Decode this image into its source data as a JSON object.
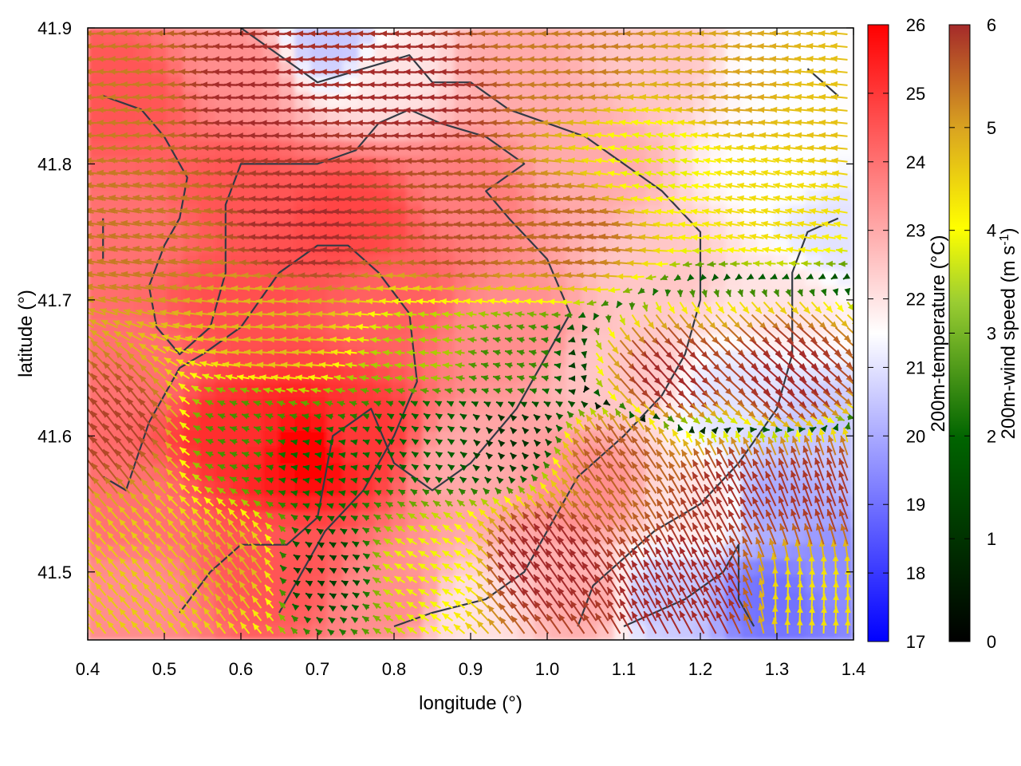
{
  "chart_data": {
    "type": "heatmap",
    "subtype": "temperature field with wind vector overlay and terrain contours",
    "xlabel": "longitude (°)",
    "ylabel": "latitude (°)",
    "xlim": [
      0.4,
      1.4
    ],
    "ylim": [
      41.45,
      41.9
    ],
    "x_ticks": [
      "0.4",
      "0.5",
      "0.6",
      "0.7",
      "0.8",
      "0.9",
      "1.0",
      "1.1",
      "1.2",
      "1.3",
      "1.4"
    ],
    "y_ticks": [
      "41.5",
      "41.6",
      "41.7",
      "41.8",
      "41.9"
    ],
    "grid": false,
    "temperature_colorbar": {
      "label": "200m-temperature (°C)",
      "range": [
        17,
        26
      ],
      "ticks": [
        "17",
        "18",
        "19",
        "20",
        "21",
        "22",
        "23",
        "24",
        "25",
        "26"
      ],
      "colors": [
        "#0000ff",
        "#ffffff",
        "#ff0000"
      ]
    },
    "wind_colorbar": {
      "label": "200m-wind speed (m s-1)",
      "range": [
        0,
        6
      ],
      "ticks": [
        "0",
        "1",
        "2",
        "3",
        "4",
        "5",
        "6"
      ],
      "colors": [
        "#000000",
        "#006400",
        "#ffff00",
        "#daa520",
        "#a52a2a"
      ]
    },
    "temperature_regions": [
      {
        "lon": 0.45,
        "lat": 41.85,
        "t": 24.5
      },
      {
        "lon": 0.6,
        "lat": 41.87,
        "t": 23.5
      },
      {
        "lon": 0.72,
        "lat": 41.89,
        "t": 20.5
      },
      {
        "lon": 0.8,
        "lat": 41.87,
        "t": 22.0
      },
      {
        "lon": 0.95,
        "lat": 41.87,
        "t": 23.0
      },
      {
        "lon": 1.15,
        "lat": 41.88,
        "t": 22.5
      },
      {
        "lon": 1.3,
        "lat": 41.87,
        "t": 21.5
      },
      {
        "lon": 1.3,
        "lat": 41.8,
        "t": 21.5
      },
      {
        "lon": 1.38,
        "lat": 41.75,
        "t": 21.0
      },
      {
        "lon": 0.45,
        "lat": 41.75,
        "t": 24.0
      },
      {
        "lon": 0.6,
        "lat": 41.78,
        "t": 24.5
      },
      {
        "lon": 0.75,
        "lat": 41.76,
        "t": 24.8
      },
      {
        "lon": 0.9,
        "lat": 41.78,
        "t": 23.8
      },
      {
        "lon": 1.05,
        "lat": 41.8,
        "t": 23.0
      },
      {
        "lon": 1.15,
        "lat": 41.72,
        "t": 22.5
      },
      {
        "lon": 1.3,
        "lat": 41.7,
        "t": 22.0
      },
      {
        "lon": 0.45,
        "lat": 41.65,
        "t": 24.0
      },
      {
        "lon": 0.6,
        "lat": 41.7,
        "t": 24.6
      },
      {
        "lon": 0.8,
        "lat": 41.7,
        "t": 24.3
      },
      {
        "lon": 0.95,
        "lat": 41.68,
        "t": 23.5
      },
      {
        "lon": 1.1,
        "lat": 41.65,
        "t": 22.5
      },
      {
        "lon": 1.25,
        "lat": 41.63,
        "t": 21.0
      },
      {
        "lon": 1.35,
        "lat": 41.6,
        "t": 20.5
      },
      {
        "lon": 0.45,
        "lat": 41.55,
        "t": 24.0
      },
      {
        "lon": 0.6,
        "lat": 41.6,
        "t": 25.2
      },
      {
        "lon": 0.69,
        "lat": 41.59,
        "t": 26.0
      },
      {
        "lon": 0.75,
        "lat": 41.6,
        "t": 25.0
      },
      {
        "lon": 0.9,
        "lat": 41.58,
        "t": 23.0
      },
      {
        "lon": 1.05,
        "lat": 41.56,
        "t": 23.5
      },
      {
        "lon": 1.2,
        "lat": 41.55,
        "t": 22.0
      },
      {
        "lon": 1.3,
        "lat": 41.55,
        "t": 20.0
      },
      {
        "lon": 0.45,
        "lat": 41.48,
        "t": 23.5
      },
      {
        "lon": 0.65,
        "lat": 41.5,
        "t": 24.5
      },
      {
        "lon": 0.8,
        "lat": 41.48,
        "t": 23.5
      },
      {
        "lon": 0.9,
        "lat": 41.47,
        "t": 22.0
      },
      {
        "lon": 1.05,
        "lat": 41.48,
        "t": 23.0
      },
      {
        "lon": 1.15,
        "lat": 41.48,
        "t": 20.5
      },
      {
        "lon": 1.3,
        "lat": 41.48,
        "t": 19.0
      },
      {
        "lon": 1.38,
        "lat": 41.5,
        "t": 19.5
      }
    ],
    "wind_regions": [
      {
        "lon": 0.45,
        "lat": 41.85,
        "u": -5.0,
        "v": 0.3
      },
      {
        "lon": 0.65,
        "lat": 41.85,
        "u": -6.0,
        "v": 0.2
      },
      {
        "lon": 0.85,
        "lat": 41.85,
        "u": -6.0,
        "v": 0.2
      },
      {
        "lon": 1.05,
        "lat": 41.88,
        "u": -5.0,
        "v": 0.2
      },
      {
        "lon": 1.25,
        "lat": 41.86,
        "u": -4.5,
        "v": 0.3
      },
      {
        "lon": 1.38,
        "lat": 41.84,
        "u": -4.0,
        "v": 0.4
      },
      {
        "lon": 1.15,
        "lat": 41.8,
        "u": -2.8,
        "v": 0.5
      },
      {
        "lon": 1.3,
        "lat": 41.77,
        "u": -3.5,
        "v": 0.7
      },
      {
        "lon": 0.5,
        "lat": 41.75,
        "u": -5.0,
        "v": 0.8
      },
      {
        "lon": 0.7,
        "lat": 41.75,
        "u": -6.0,
        "v": 0.4
      },
      {
        "lon": 0.9,
        "lat": 41.75,
        "u": -5.5,
        "v": 0.4
      },
      {
        "lon": 1.05,
        "lat": 41.75,
        "u": -5.2,
        "v": 0.6
      },
      {
        "lon": 0.65,
        "lat": 41.68,
        "u": -4.2,
        "v": 0.3
      },
      {
        "lon": 0.85,
        "lat": 41.66,
        "u": -2.5,
        "v": 0.2
      },
      {
        "lon": 0.95,
        "lat": 41.65,
        "u": -1.8,
        "v": 0.5
      },
      {
        "lon": 1.15,
        "lat": 41.65,
        "u": 4.0,
        "v": -4.5
      },
      {
        "lon": 1.3,
        "lat": 41.65,
        "u": 4.5,
        "v": -4.0
      },
      {
        "lon": 0.45,
        "lat": 41.6,
        "u": -3.5,
        "v": 4.5
      },
      {
        "lon": 0.6,
        "lat": 41.6,
        "u": -1.8,
        "v": 0.6
      },
      {
        "lon": 0.7,
        "lat": 41.58,
        "u": -1.5,
        "v": 0.3
      },
      {
        "lon": 0.85,
        "lat": 41.6,
        "u": -1.2,
        "v": 0.8
      },
      {
        "lon": 0.95,
        "lat": 41.6,
        "u": -0.5,
        "v": 0.5
      },
      {
        "lon": 1.1,
        "lat": 41.58,
        "u": -3.0,
        "v": 4.5
      },
      {
        "lon": 1.25,
        "lat": 41.55,
        "u": -2.8,
        "v": 5.2
      },
      {
        "lon": 1.35,
        "lat": 41.55,
        "u": -2.0,
        "v": 5.5
      },
      {
        "lon": 0.45,
        "lat": 41.5,
        "u": -2.5,
        "v": 3.0
      },
      {
        "lon": 0.6,
        "lat": 41.5,
        "u": -2.5,
        "v": 3.5
      },
      {
        "lon": 0.7,
        "lat": 41.5,
        "u": -0.8,
        "v": 0.4
      },
      {
        "lon": 0.85,
        "lat": 41.5,
        "u": -2.5,
        "v": 1.5
      },
      {
        "lon": 1.0,
        "lat": 41.5,
        "u": -3.5,
        "v": 5.0
      },
      {
        "lon": 1.2,
        "lat": 41.48,
        "u": -3.0,
        "v": 5.5
      },
      {
        "lon": 1.35,
        "lat": 41.48,
        "u": 0.2,
        "v": 3.5
      }
    ],
    "terrain_contours": [
      [
        [
          0.42,
          41.85
        ],
        [
          0.47,
          41.84
        ],
        [
          0.5,
          41.82
        ],
        [
          0.53,
          41.79
        ],
        [
          0.52,
          41.76
        ],
        [
          0.5,
          41.74
        ],
        [
          0.48,
          41.71
        ],
        [
          0.49,
          41.68
        ],
        [
          0.52,
          41.66
        ],
        [
          0.56,
          41.68
        ],
        [
          0.58,
          41.72
        ],
        [
          0.58,
          41.77
        ],
        [
          0.6,
          41.8
        ],
        [
          0.65,
          41.8
        ],
        [
          0.7,
          41.8
        ],
        [
          0.75,
          41.81
        ],
        [
          0.78,
          41.83
        ],
        [
          0.82,
          41.84
        ],
        [
          0.86,
          41.83
        ],
        [
          0.92,
          41.82
        ],
        [
          0.97,
          41.8
        ],
        [
          0.92,
          41.78
        ],
        [
          0.95,
          41.76
        ],
        [
          1.0,
          41.73
        ],
        [
          1.03,
          41.69
        ],
        [
          1.0,
          41.66
        ],
        [
          0.96,
          41.62
        ],
        [
          0.9,
          41.58
        ],
        [
          0.85,
          41.56
        ],
        [
          0.8,
          41.58
        ],
        [
          0.77,
          41.62
        ],
        [
          0.72,
          41.6
        ],
        [
          0.7,
          41.54
        ],
        [
          0.66,
          41.52
        ],
        [
          0.6,
          41.52
        ],
        [
          0.56,
          41.5
        ],
        [
          0.52,
          41.47
        ]
      ],
      [
        [
          0.42,
          41.57
        ],
        [
          0.45,
          41.56
        ],
        [
          0.48,
          41.61
        ],
        [
          0.52,
          41.65
        ],
        [
          0.55,
          41.66
        ],
        [
          0.6,
          41.68
        ],
        [
          0.65,
          41.72
        ],
        [
          0.7,
          41.74
        ],
        [
          0.74,
          41.74
        ],
        [
          0.78,
          41.72
        ],
        [
          0.82,
          41.69
        ],
        [
          0.83,
          41.64
        ],
        [
          0.8,
          41.6
        ],
        [
          0.76,
          41.56
        ],
        [
          0.71,
          41.53
        ],
        [
          0.68,
          41.5
        ],
        [
          0.65,
          41.47
        ]
      ],
      [
        [
          0.6,
          41.9
        ],
        [
          0.65,
          41.88
        ],
        [
          0.7,
          41.86
        ],
        [
          0.76,
          41.87
        ],
        [
          0.82,
          41.88
        ],
        [
          0.85,
          41.86
        ],
        [
          0.9,
          41.86
        ],
        [
          0.95,
          41.84
        ],
        [
          1.0,
          41.83
        ],
        [
          1.05,
          41.82
        ],
        [
          1.1,
          41.8
        ],
        [
          1.15,
          41.78
        ],
        [
          1.2,
          41.75
        ],
        [
          1.2,
          41.7
        ],
        [
          1.18,
          41.66
        ],
        [
          1.15,
          41.63
        ],
        [
          1.1,
          41.6
        ],
        [
          1.04,
          41.57
        ],
        [
          1.0,
          41.53
        ],
        [
          0.97,
          41.5
        ],
        [
          0.92,
          41.48
        ],
        [
          0.85,
          41.47
        ],
        [
          0.8,
          41.46
        ]
      ],
      [
        [
          1.38,
          41.76
        ],
        [
          1.34,
          41.75
        ],
        [
          1.32,
          41.72
        ],
        [
          1.32,
          41.66
        ],
        [
          1.3,
          41.62
        ],
        [
          1.25,
          41.58
        ],
        [
          1.2,
          41.55
        ],
        [
          1.14,
          41.53
        ],
        [
          1.1,
          41.51
        ],
        [
          1.06,
          41.49
        ],
        [
          1.04,
          41.46
        ]
      ],
      [
        [
          1.1,
          41.46
        ],
        [
          1.18,
          41.48
        ],
        [
          1.23,
          41.5
        ],
        [
          1.25,
          41.52
        ],
        [
          1.25,
          41.48
        ],
        [
          1.27,
          41.46
        ]
      ],
      [
        [
          0.42,
          41.76
        ],
        [
          0.42,
          41.73
        ]
      ],
      [
        [
          1.34,
          41.87
        ],
        [
          1.38,
          41.85
        ]
      ]
    ]
  }
}
